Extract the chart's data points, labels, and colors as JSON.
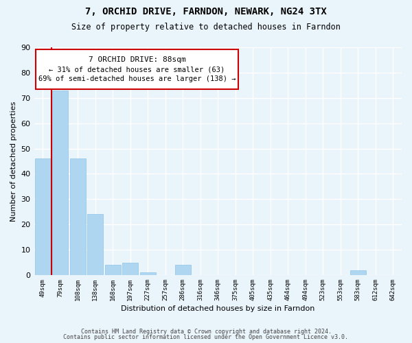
{
  "title": "7, ORCHID DRIVE, FARNDON, NEWARK, NG24 3TX",
  "subtitle": "Size of property relative to detached houses in Farndon",
  "xlabel": "Distribution of detached houses by size in Farndon",
  "ylabel": "Number of detached properties",
  "bar_labels": [
    "49sqm",
    "79sqm",
    "108sqm",
    "138sqm",
    "168sqm",
    "197sqm",
    "227sqm",
    "257sqm",
    "286sqm",
    "316sqm",
    "346sqm",
    "375sqm",
    "405sqm",
    "435sqm",
    "464sqm",
    "494sqm",
    "523sqm",
    "553sqm",
    "583sqm",
    "612sqm",
    "642sqm"
  ],
  "bar_values": [
    46,
    73,
    46,
    24,
    4,
    5,
    1,
    0,
    4,
    0,
    0,
    0,
    0,
    0,
    0,
    0,
    0,
    0,
    2,
    0,
    0
  ],
  "bar_color": "#aed6f1",
  "bar_edge_color": "#8ec4e8",
  "ylim": [
    0,
    90
  ],
  "yticks": [
    0,
    10,
    20,
    30,
    40,
    50,
    60,
    70,
    80,
    90
  ],
  "annotation_title": "7 ORCHID DRIVE: 88sqm",
  "annotation_line1": "← 31% of detached houses are smaller (63)",
  "annotation_line2": "69% of semi-detached houses are larger (138) →",
  "annotation_box_color": "#ffffff",
  "annotation_box_edge": "#cc0000",
  "red_line_color": "#cc0000",
  "footer_line1": "Contains HM Land Registry data © Crown copyright and database right 2024.",
  "footer_line2": "Contains public sector information licensed under the Open Government Licence v3.0.",
  "bg_color": "#eaf4fb",
  "grid_color": "#ffffff"
}
